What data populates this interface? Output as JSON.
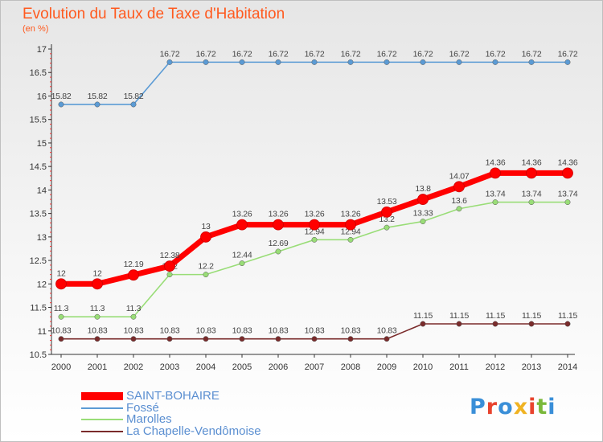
{
  "header": {
    "title": "Evolution du Taux de Taxe d'Habitation",
    "subtitle": "(en %)"
  },
  "logo": {
    "text": "Proxiti",
    "letters": [
      "P",
      "r",
      "o",
      "x",
      "i",
      "t",
      "i"
    ],
    "colors": [
      "#3a8fd8",
      "#e8432e",
      "#3a8fd8",
      "#f0b323",
      "#e8432e",
      "#7ab83a",
      "#3a8fd8"
    ]
  },
  "chart_data": {
    "type": "line",
    "title": "Evolution du Taux de Taxe d'Habitation",
    "ylabel": "(en %)",
    "xlabel": "",
    "x": [
      "2000",
      "2001",
      "2002",
      "2003",
      "2004",
      "2005",
      "2006",
      "2007",
      "2008",
      "2009",
      "2010",
      "2011",
      "2012",
      "2013",
      "2014"
    ],
    "ylim": [
      10.5,
      17
    ],
    "yticks": [
      "10.5",
      "11",
      "11.5",
      "12",
      "12.5",
      "13",
      "13.5",
      "14",
      "14.5",
      "15",
      "15.5",
      "16",
      "16.5",
      "17"
    ],
    "grid": false,
    "legend_position": "bottom-left",
    "series": [
      {
        "name": "SAINT-BOHAIRE",
        "color": "#ff0000",
        "values": [
          12,
          12,
          12.19,
          12.38,
          13,
          13.26,
          13.26,
          13.26,
          13.26,
          13.53,
          13.8,
          14.07,
          14.36,
          14.36,
          14.36
        ],
        "labels": [
          "12",
          "12",
          "12.19",
          "12.38",
          "13",
          "13.26",
          "13.26",
          "13.26",
          "13.26",
          "13.53",
          "13.8",
          "14.07",
          "14.36",
          "14.36",
          "14.36"
        ]
      },
      {
        "name": "Fossé",
        "color": "#5b9bd5",
        "values": [
          15.82,
          15.82,
          15.82,
          16.72,
          16.72,
          16.72,
          16.72,
          16.72,
          16.72,
          16.72,
          16.72,
          16.72,
          16.72,
          16.72,
          16.72
        ],
        "labels": [
          "15.82",
          "15.82",
          "15.82",
          "16.72",
          "16.72",
          "16.72",
          "16.72",
          "16.72",
          "16.72",
          "16.72",
          "16.72",
          "16.72",
          "16.72",
          "16.72",
          "16.72"
        ]
      },
      {
        "name": "Marolles",
        "color": "#99dd77",
        "values": [
          11.3,
          11.3,
          11.3,
          12.2,
          12.2,
          12.44,
          12.69,
          12.94,
          12.94,
          13.2,
          13.33,
          13.6,
          13.74,
          13.74,
          13.74
        ],
        "labels": [
          "11.3",
          "11.3",
          "11.3",
          "12.2",
          "12.2",
          "12.44",
          "12.69",
          "12.94",
          "12.94",
          "13.2",
          "13.33",
          "13.6",
          "13.74",
          "13.74",
          "13.74"
        ]
      },
      {
        "name": "La Chapelle-Vendômoise",
        "color": "#7a2b2b",
        "values": [
          10.83,
          10.83,
          10.83,
          10.83,
          10.83,
          10.83,
          10.83,
          10.83,
          10.83,
          10.83,
          11.15,
          11.15,
          11.15,
          11.15,
          11.15
        ],
        "labels": [
          "10.83",
          "10.83",
          "10.83",
          "10.83",
          "10.83",
          "10.83",
          "10.83",
          "10.83",
          "10.83",
          "10.83",
          "11.15",
          "11.15",
          "11.15",
          "11.15",
          "11.15"
        ]
      }
    ]
  }
}
